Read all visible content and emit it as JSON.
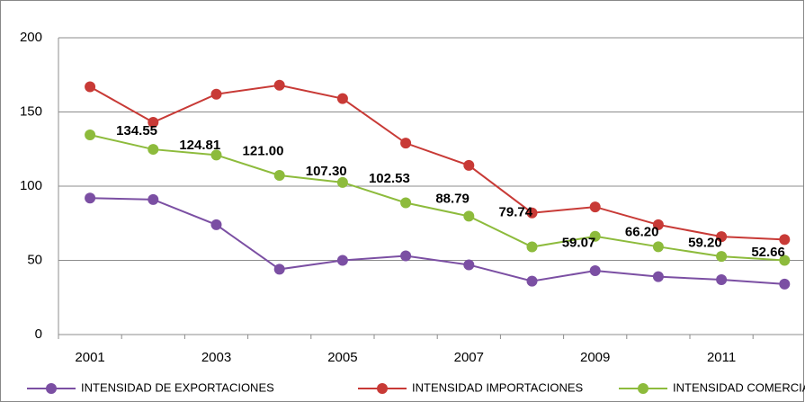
{
  "chart_data": {
    "type": "line",
    "categories": [
      "2001",
      null,
      "2003",
      null,
      "2005",
      null,
      "2007",
      null,
      "2009",
      null,
      "2011",
      null
    ],
    "series": [
      {
        "name": "INTENSIDAD DE EXPORTACIONES",
        "color": "#7b4fa3",
        "values": [
          92,
          91,
          74,
          44,
          50,
          53,
          47,
          36,
          43,
          39,
          37,
          34
        ]
      },
      {
        "name": "INTENSIDAD IMPORTACIONES",
        "color": "#c83a36",
        "values": [
          167,
          143,
          162,
          168,
          159,
          129,
          114,
          82,
          86,
          74,
          66,
          64
        ]
      },
      {
        "name": "INTENSIDAD COMERCIAL",
        "color": "#8dbb3c",
        "values": [
          134.55,
          124.81,
          121.0,
          107.3,
          102.53,
          88.79,
          79.74,
          59.07,
          66.2,
          59.2,
          52.66,
          50
        ],
        "value_labels": [
          "134.55",
          "124.81",
          "121.00",
          "107.30",
          "102.53",
          "88.79",
          "79.74",
          "59.07",
          "66.20",
          "59.20",
          "52.66",
          null
        ]
      }
    ],
    "ylim": [
      0,
      200
    ],
    "yticks": [
      0,
      50,
      100,
      150,
      200
    ],
    "grid": true,
    "legend": "bottom"
  }
}
